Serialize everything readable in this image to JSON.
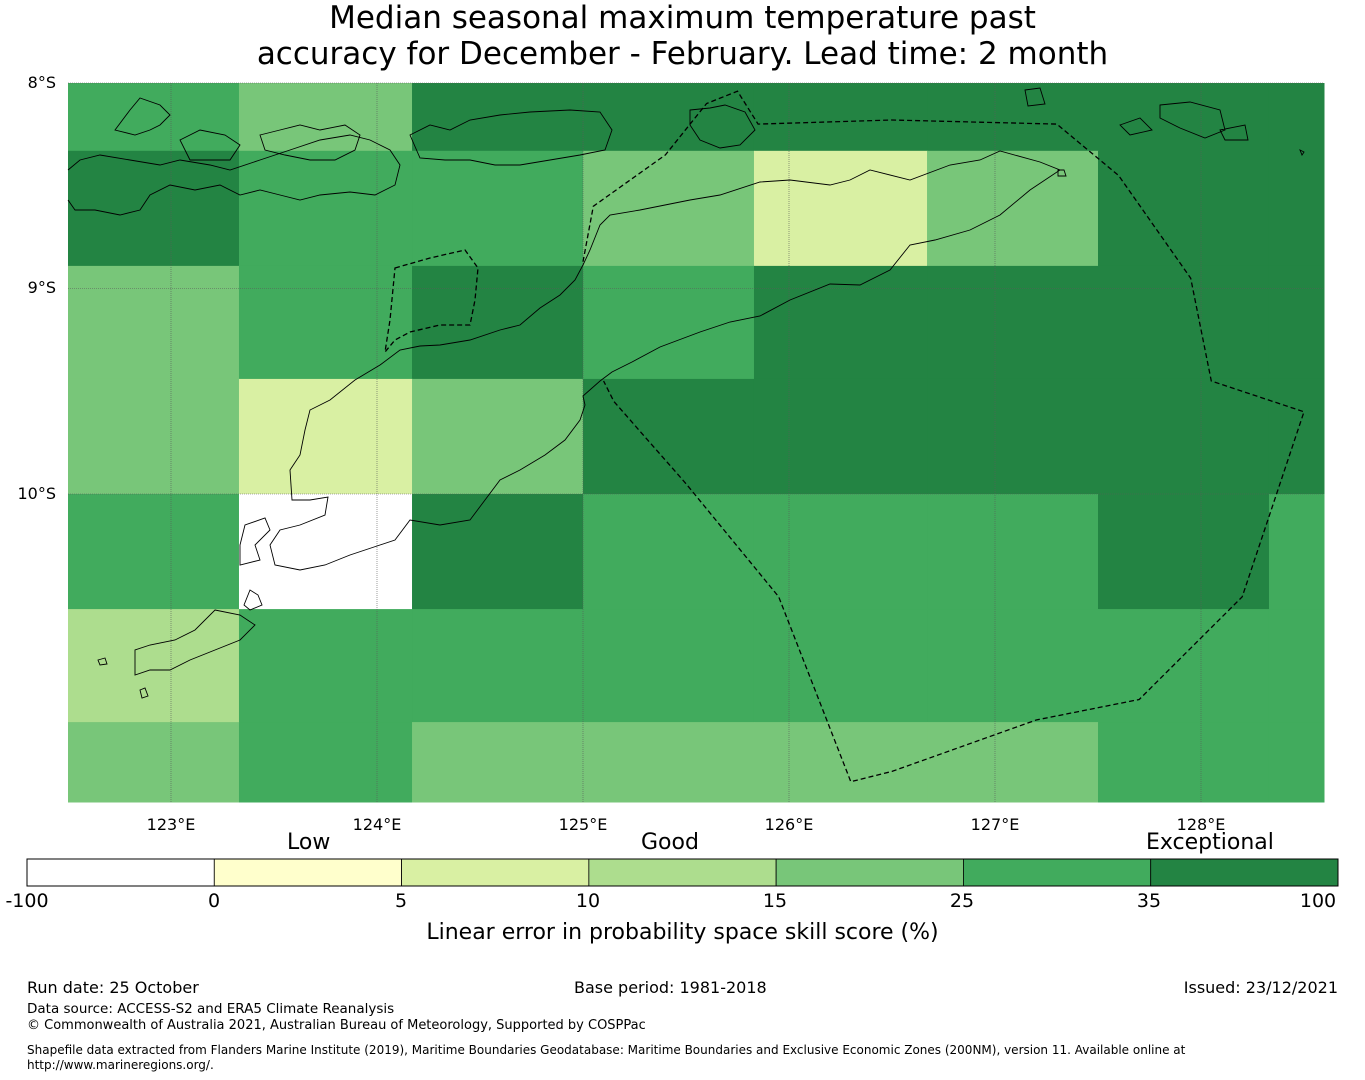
{
  "title": {
    "line1": "Median seasonal maximum temperature past",
    "line2": "accuracy for December - February. Lead time: 2 month"
  },
  "map": {
    "lat_labels": [
      "8°S",
      "9°S",
      "10°S"
    ],
    "lon_labels": [
      "123°E",
      "124°E",
      "125°E",
      "126°E",
      "127°E",
      "128°E"
    ],
    "lon_range": [
      122.5,
      128.6
    ],
    "lat_range": [
      -8.0,
      -11.5
    ],
    "cell_lon_edges": [
      122.5,
      123.33,
      124.17,
      125.0,
      125.83,
      126.67,
      127.5,
      128.33,
      128.6
    ],
    "cell_lat_edges": [
      -8.0,
      -8.33,
      -8.89,
      -9.44,
      -10.0,
      -10.56,
      -11.11,
      -11.5
    ],
    "cells": [
      [
        "25-35",
        "15-25",
        "35-100",
        "35-100",
        "35-100",
        "35-100",
        "35-100",
        "35-100"
      ],
      [
        "35-100",
        "25-35",
        "25-35",
        "15-25",
        "5-10",
        "15-25",
        "35-100",
        "35-100"
      ],
      [
        "15-25",
        "25-35",
        "35-100",
        "25-35",
        "35-100",
        "35-100",
        "35-100",
        "35-100"
      ],
      [
        "15-25",
        "5-10",
        "15-25",
        "35-100",
        "35-100",
        "35-100",
        "35-100",
        "35-100"
      ],
      [
        "25-35",
        "-100-0",
        "35-100",
        "25-35",
        "25-35",
        "25-35",
        "35-100",
        "25-35"
      ],
      [
        "10-15",
        "25-35",
        "25-35",
        "25-35",
        "25-35",
        "25-35",
        "25-35",
        "25-35"
      ],
      [
        "15-25",
        "25-35",
        "15-25",
        "15-25",
        "15-25",
        "15-25",
        "25-35",
        "25-35"
      ]
    ],
    "eez_boundary": [
      [
        125.0,
        -8.87
      ],
      [
        125.05,
        -8.6
      ],
      [
        125.4,
        -8.35
      ],
      [
        125.6,
        -8.1
      ],
      [
        125.75,
        -8.04
      ],
      [
        125.85,
        -8.2
      ],
      [
        126.5,
        -8.18
      ],
      [
        127.3,
        -8.2
      ],
      [
        127.6,
        -8.45
      ],
      [
        127.95,
        -8.95
      ],
      [
        128.05,
        -9.45
      ],
      [
        128.5,
        -9.6
      ],
      [
        128.2,
        -10.5
      ],
      [
        127.7,
        -11.0
      ],
      [
        127.2,
        -11.1
      ],
      [
        126.5,
        -11.35
      ],
      [
        126.3,
        -11.4
      ],
      [
        125.95,
        -10.5
      ],
      [
        125.5,
        -9.95
      ],
      [
        125.15,
        -9.55
      ],
      [
        125.1,
        -9.45
      ]
    ],
    "lines": {
      "grid": "#5a5a5a",
      "coast": "#000000"
    }
  },
  "colorbar": {
    "categories": [
      "Low",
      "Good",
      "Exceptional"
    ],
    "ticks": [
      "-100",
      "0",
      "5",
      "10",
      "15",
      "25",
      "35",
      "100"
    ],
    "bins": [
      {
        "range": "-100-0",
        "color": "#ffffff"
      },
      {
        "range": "0-5",
        "color": "#ffffcc"
      },
      {
        "range": "5-10",
        "color": "#d9f0a3"
      },
      {
        "range": "10-15",
        "color": "#addd8e"
      },
      {
        "range": "15-25",
        "color": "#78c679"
      },
      {
        "range": "25-35",
        "color": "#41ab5d"
      },
      {
        "range": "35-100",
        "color": "#238443"
      }
    ],
    "label": "Linear error in probability space skill score (%)"
  },
  "footer": {
    "run_date": "Run date: 25 October",
    "base_period": "Base period: 1981-2018",
    "issued": "Issued: 23/12/2021",
    "data_source": "Data source: ACCESS-S2 and ERA5 Climate Reanalysis",
    "copyright": "© Commonwealth of Australia 2021, Australian Bureau of Meteorology, Supported by COSPPac",
    "shapefile_1": "Shapefile data extracted from Flanders Marine Institute (2019), Maritime Boundaries Geodatabase: Maritime Boundaries and Exclusive Economic Zones (200NM), version 11. Available online at",
    "shapefile_2": "http://www.marineregions.org/."
  }
}
